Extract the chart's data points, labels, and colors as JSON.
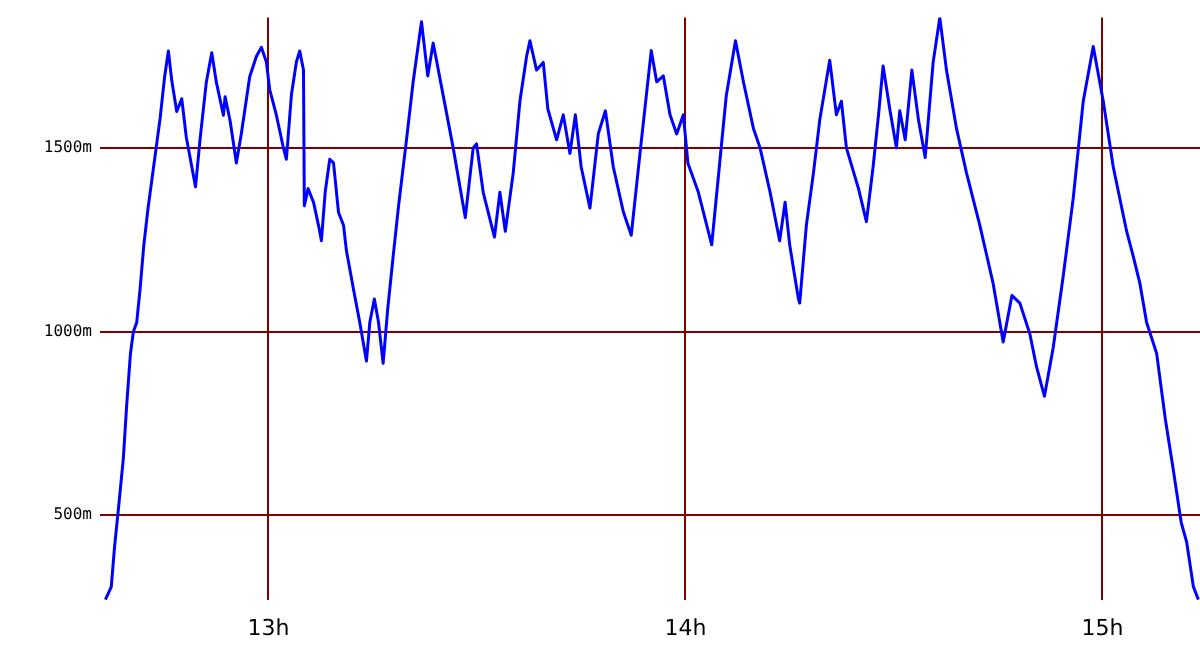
{
  "chart_data": {
    "type": "line",
    "marker": "none",
    "line_style": "solid",
    "grid": true,
    "legend": false,
    "xlim": [
      12.596,
      15.234
    ],
    "ylim": [
      269,
      1856
    ],
    "xticks": [
      {
        "value": 13,
        "label": "13h"
      },
      {
        "value": 14,
        "label": "14h"
      },
      {
        "value": 15,
        "label": "15h"
      }
    ],
    "yticks": [
      {
        "value": 500,
        "label": "500m"
      },
      {
        "value": 1000,
        "label": "1000m"
      },
      {
        "value": 1500,
        "label": "1500m"
      }
    ],
    "x": [
      12.609,
      12.623,
      12.631,
      12.64,
      12.652,
      12.66,
      12.669,
      12.676,
      12.684,
      12.692,
      12.701,
      12.711,
      12.727,
      12.74,
      12.751,
      12.76,
      12.768,
      12.78,
      12.792,
      12.803,
      12.816,
      12.825,
      12.836,
      12.851,
      12.864,
      12.875,
      12.892,
      12.896,
      12.908,
      12.923,
      12.935,
      12.955,
      12.971,
      12.983,
      12.995,
      13.003,
      13.019,
      13.036,
      13.043,
      13.055,
      13.067,
      13.075,
      13.084,
      13.086,
      13.095,
      13.108,
      13.12,
      13.127,
      13.136,
      13.147,
      13.156,
      13.168,
      13.18,
      13.187,
      13.204,
      13.219,
      13.235,
      13.243,
      13.254,
      13.264,
      13.275,
      13.286,
      13.299,
      13.312,
      13.315,
      13.331,
      13.347,
      13.367,
      13.382,
      13.395,
      13.419,
      13.443,
      13.472,
      13.491,
      13.499,
      13.515,
      13.542,
      13.555,
      13.568,
      13.587,
      13.603,
      13.619,
      13.627,
      13.643,
      13.659,
      13.67,
      13.691,
      13.707,
      13.723,
      13.736,
      13.75,
      13.771,
      13.791,
      13.808,
      13.827,
      13.851,
      13.87,
      13.891,
      13.918,
      13.931,
      13.947,
      13.963,
      13.979,
      13.995,
      14.006,
      14.031,
      14.063,
      14.083,
      14.098,
      14.12,
      14.139,
      14.163,
      14.179,
      14.203,
      14.226,
      14.239,
      14.25,
      14.262,
      14.271,
      14.274,
      14.29,
      14.307,
      14.322,
      14.346,
      14.362,
      14.374,
      14.386,
      14.415,
      14.434,
      14.45,
      14.463,
      14.474,
      14.49,
      14.506,
      14.514,
      14.527,
      14.543,
      14.559,
      14.575,
      14.594,
      14.61,
      14.626,
      14.65,
      14.674,
      14.706,
      14.738,
      14.762,
      14.783,
      14.802,
      14.826,
      14.842,
      14.861,
      14.882,
      14.906,
      14.93,
      14.954,
      14.978,
      15.002,
      15.026,
      15.058,
      15.074,
      15.09,
      15.106,
      15.13,
      15.151,
      15.17,
      15.189,
      15.202,
      15.218,
      15.23
    ],
    "series": [
      {
        "color": "#0000ff",
        "values": [
          270,
          305,
          415,
          515,
          655,
          800,
          940,
          1000,
          1025,
          1115,
          1235,
          1335,
          1470,
          1580,
          1695,
          1765,
          1685,
          1600,
          1635,
          1530,
          1450,
          1395,
          1525,
          1680,
          1760,
          1680,
          1590,
          1640,
          1575,
          1460,
          1540,
          1695,
          1750,
          1775,
          1735,
          1660,
          1590,
          1500,
          1470,
          1645,
          1735,
          1765,
          1713,
          1343,
          1390,
          1353,
          1290,
          1248,
          1380,
          1470,
          1460,
          1325,
          1290,
          1221,
          1115,
          1025,
          920,
          1025,
          1089,
          1025,
          914,
          1062,
          1205,
          1343,
          1343,
          1523,
          1681,
          1845,
          1697,
          1787,
          1644,
          1501,
          1311,
          1501,
          1512,
          1380,
          1258,
          1380,
          1274,
          1433,
          1628,
          1750,
          1793,
          1713,
          1734,
          1607,
          1523,
          1591,
          1486,
          1591,
          1449,
          1337,
          1539,
          1602,
          1449,
          1327,
          1263,
          1486,
          1766,
          1681,
          1697,
          1591,
          1539,
          1591,
          1459,
          1380,
          1237,
          1470,
          1644,
          1793,
          1681,
          1554,
          1501,
          1380,
          1248,
          1353,
          1237,
          1152,
          1089,
          1078,
          1290,
          1433,
          1576,
          1740,
          1591,
          1628,
          1501,
          1390,
          1300,
          1449,
          1591,
          1724,
          1607,
          1501,
          1602,
          1523,
          1713,
          1576,
          1475,
          1734,
          1856,
          1713,
          1554,
          1433,
          1290,
          1131,
          972,
          1099,
          1078,
          994,
          904,
          824,
          957,
          1152,
          1364,
          1628,
          1777,
          1628,
          1449,
          1274,
          1205,
          1131,
          1025,
          941,
          761,
          623,
          480,
          427,
          306,
          270
        ]
      }
    ]
  }
}
